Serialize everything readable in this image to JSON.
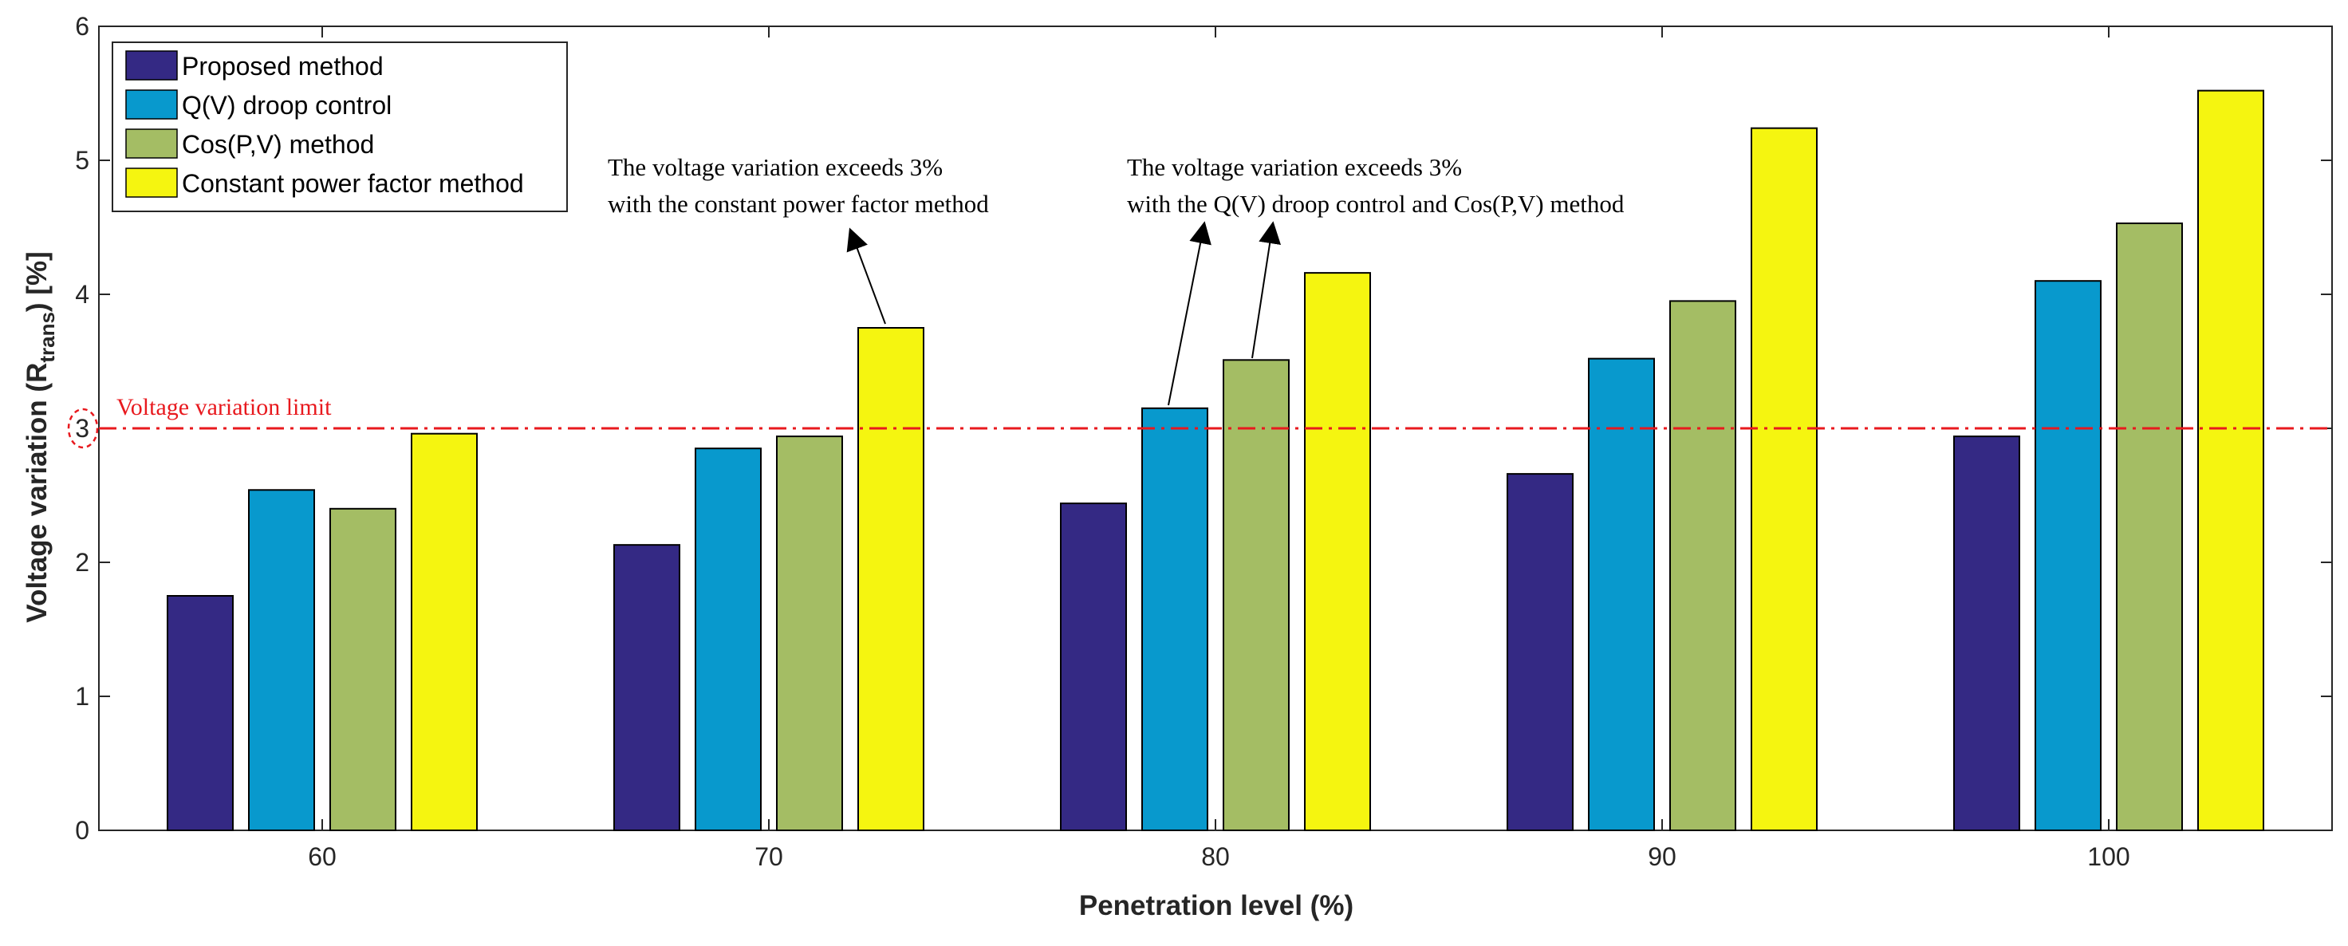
{
  "chart_data": {
    "type": "bar",
    "title": "",
    "xlabel": "Penetration level (%)",
    "ylabel_prefix": "Voltage variation (R",
    "ylabel_sub": "trans",
    "ylabel_suffix": ") [%]",
    "ylim": [
      0,
      6
    ],
    "yticks": [
      "0",
      "1",
      "2",
      "3",
      "4",
      "5",
      "6"
    ],
    "categories": [
      "60",
      "70",
      "80",
      "90",
      "100"
    ],
    "series": [
      {
        "name": "Proposed method",
        "color": "#342984",
        "values": [
          1.75,
          2.13,
          2.44,
          2.66,
          2.94
        ]
      },
      {
        "name": "Q(V) droop control",
        "color": "#0899CD",
        "values": [
          2.54,
          2.85,
          3.15,
          3.52,
          4.1
        ]
      },
      {
        "name": "Cos(P,V) method",
        "color": "#A4BD64",
        "values": [
          2.4,
          2.94,
          3.51,
          3.95,
          4.53
        ]
      },
      {
        "name": "Constant power factor method",
        "color": "#F5F510",
        "values": [
          2.96,
          3.75,
          4.16,
          5.24,
          5.52
        ]
      }
    ],
    "limit_line": {
      "value": 3,
      "label": "Voltage variation limit",
      "color": "#E8191E"
    },
    "annotations": [
      {
        "line1": "The voltage variation exceeds 3%",
        "line2": "with the constant power factor method"
      },
      {
        "line1": "The voltage variation exceeds 3%",
        "line2": "with the Q(V) droop control and Cos(P,V) method"
      }
    ],
    "legend_position": "top-left",
    "grid": false
  }
}
